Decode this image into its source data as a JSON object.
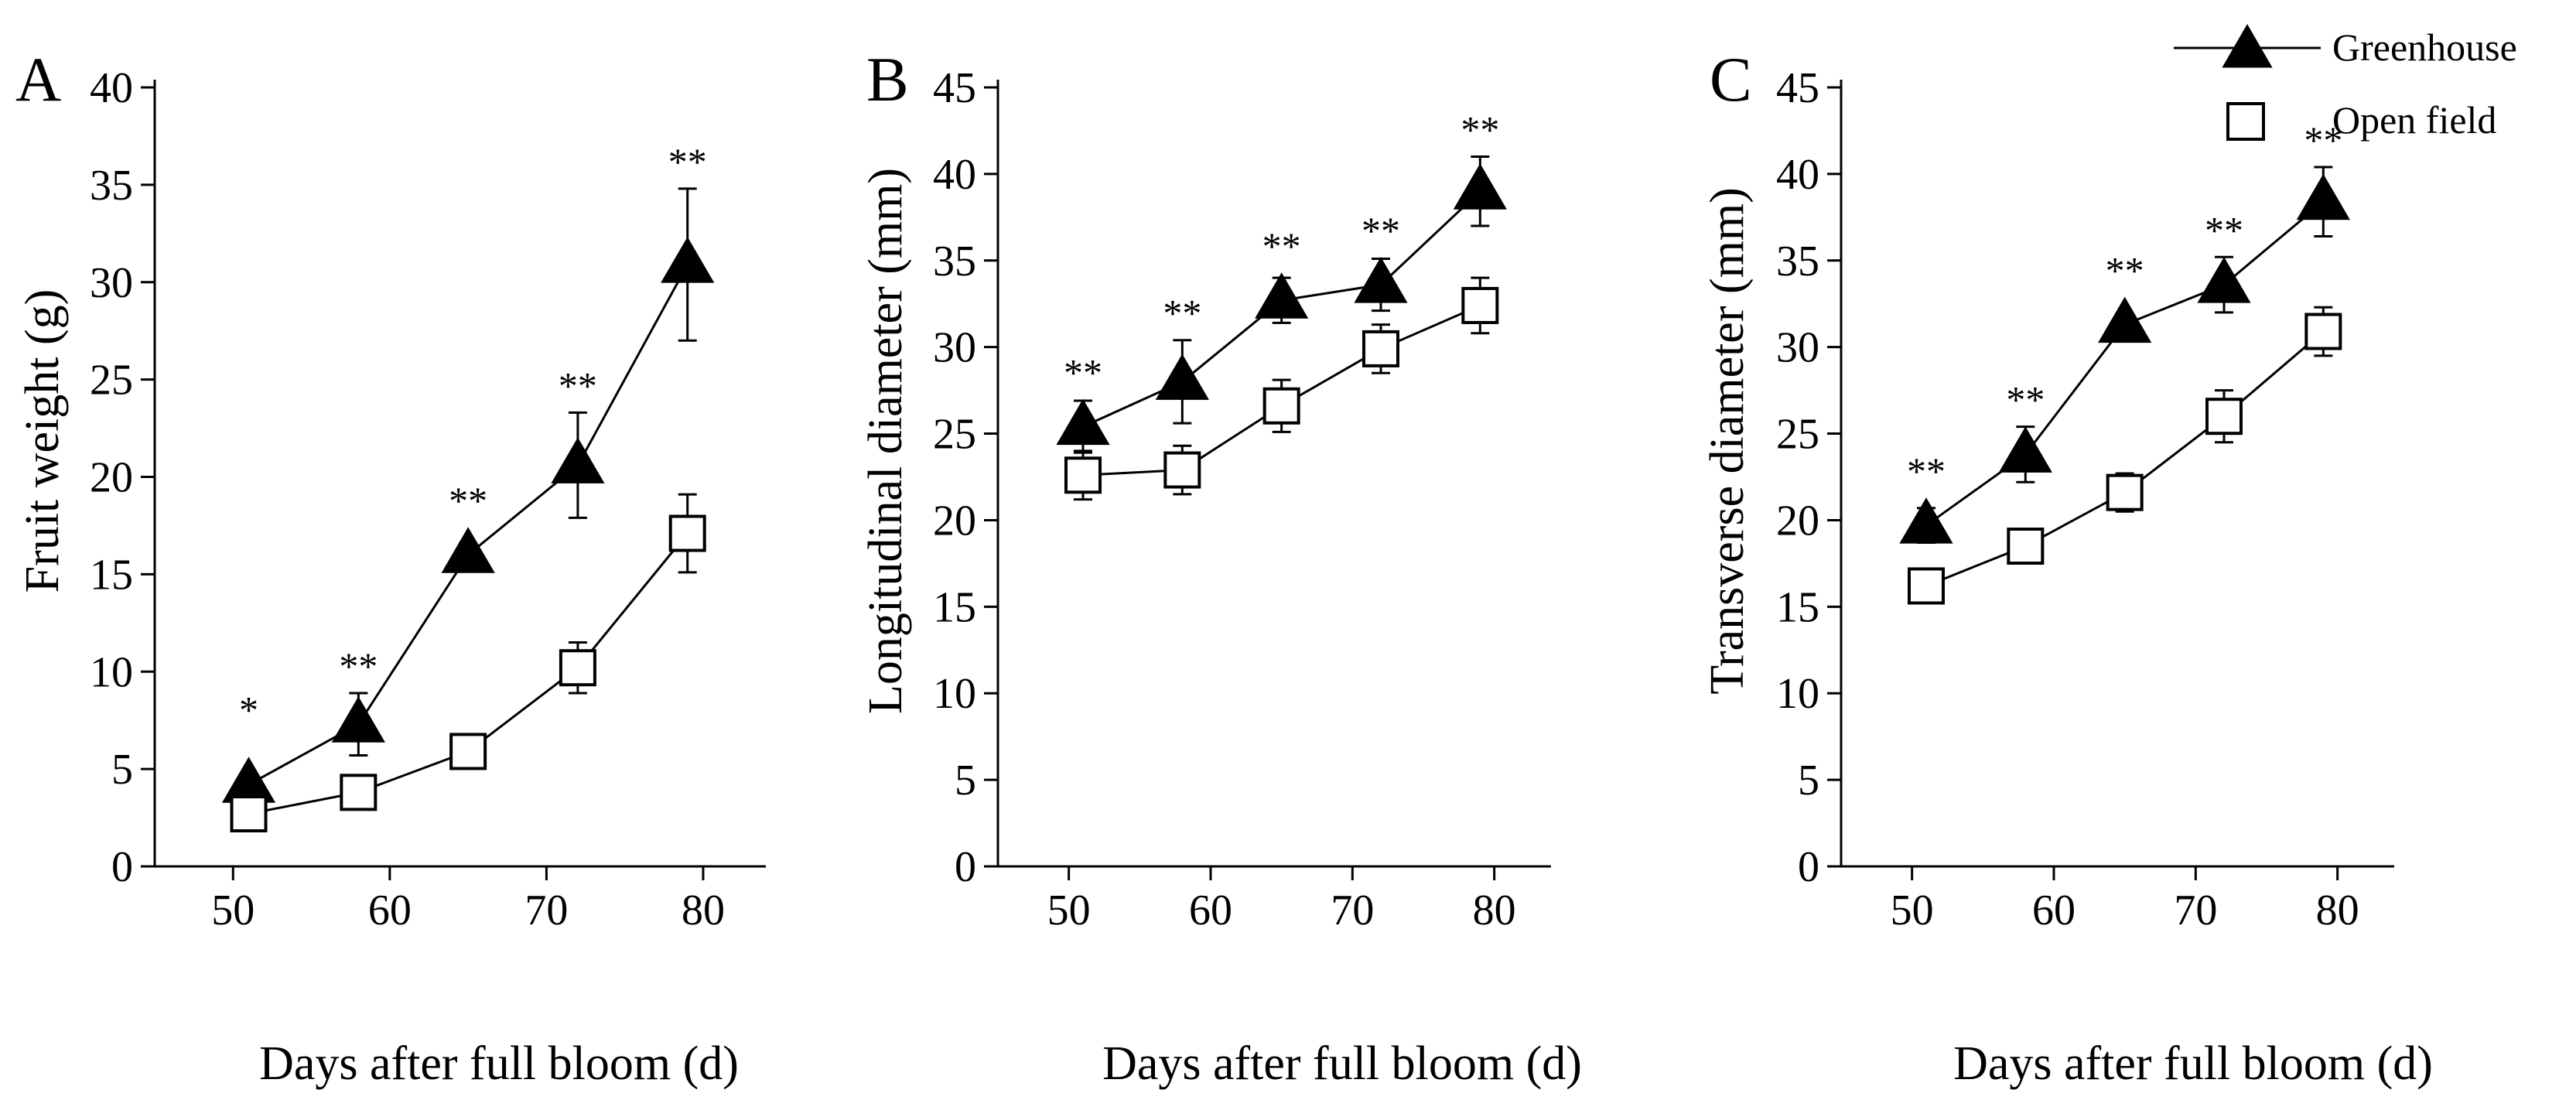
{
  "chart_data": [
    {
      "panel": "A",
      "type": "line",
      "xlabel": "Days after full bloom (d)",
      "ylabel": "Fruit weight (g)",
      "xlim": [
        45,
        84
      ],
      "ylim": [
        0,
        40
      ],
      "xticks": [
        50,
        60,
        70,
        80
      ],
      "yticks": [
        0,
        5,
        10,
        15,
        20,
        25,
        30,
        35,
        40
      ],
      "x": [
        51,
        58,
        65,
        72,
        79
      ],
      "series": [
        {
          "name": "Greenhouse",
          "marker": "filled-triangle",
          "values": [
            4.2,
            7.3,
            16.0,
            20.6,
            30.9
          ],
          "errors": [
            0.5,
            1.6,
            0.6,
            2.7,
            3.9
          ]
        },
        {
          "name": "Open field",
          "marker": "open-square",
          "values": [
            2.7,
            3.8,
            5.9,
            10.2,
            17.1
          ],
          "errors": [
            0.5,
            0.7,
            0.8,
            1.3,
            2.0
          ]
        }
      ],
      "significance": [
        "*",
        "**",
        "**",
        "**",
        "**"
      ]
    },
    {
      "panel": "B",
      "type": "line",
      "xlabel": "Days after full bloom (d)",
      "ylabel": "Longitudinal diameter (mm)",
      "xlim": [
        45,
        84
      ],
      "ylim": [
        0,
        45
      ],
      "xticks": [
        50,
        60,
        70,
        80
      ],
      "yticks": [
        0,
        5,
        10,
        15,
        20,
        25,
        30,
        35,
        40,
        45
      ],
      "x": [
        51,
        58,
        65,
        72,
        79
      ],
      "series": [
        {
          "name": "Greenhouse",
          "marker": "filled-triangle",
          "values": [
            25.4,
            28.0,
            32.7,
            33.6,
            39.0
          ],
          "errors": [
            1.5,
            2.4,
            1.3,
            1.5,
            2.0
          ]
        },
        {
          "name": "Open field",
          "marker": "open-square",
          "values": [
            22.6,
            22.9,
            26.6,
            29.9,
            32.4
          ],
          "errors": [
            1.4,
            1.4,
            1.5,
            1.4,
            1.6
          ]
        }
      ],
      "significance": [
        "**",
        "**",
        "**",
        "**",
        "**"
      ]
    },
    {
      "panel": "C",
      "type": "line",
      "xlabel": "Days after full bloom (d)",
      "ylabel": "Transverse diameter (mm)",
      "xlim": [
        45,
        84
      ],
      "ylim": [
        0,
        45
      ],
      "xticks": [
        50,
        60,
        70,
        80
      ],
      "yticks": [
        0,
        5,
        10,
        15,
        20,
        25,
        30,
        35,
        40,
        45
      ],
      "x": [
        51,
        58,
        65,
        72,
        79
      ],
      "series": [
        {
          "name": "Greenhouse",
          "marker": "filled-triangle",
          "values": [
            19.7,
            23.8,
            31.3,
            33.6,
            38.4
          ],
          "errors": [
            1.0,
            1.6,
            0.5,
            1.6,
            2.0
          ]
        },
        {
          "name": "Open field",
          "marker": "open-square",
          "values": [
            16.2,
            18.5,
            21.6,
            26.0,
            30.9
          ],
          "errors": [
            0.8,
            0.5,
            1.1,
            1.5,
            1.4
          ]
        }
      ],
      "significance": [
        "**",
        "**",
        "**",
        "**",
        "**"
      ]
    }
  ],
  "legend": {
    "items": [
      {
        "label": "Greenhouse",
        "marker": "filled-triangle"
      },
      {
        "label": "Open field",
        "marker": "open-square"
      }
    ]
  }
}
